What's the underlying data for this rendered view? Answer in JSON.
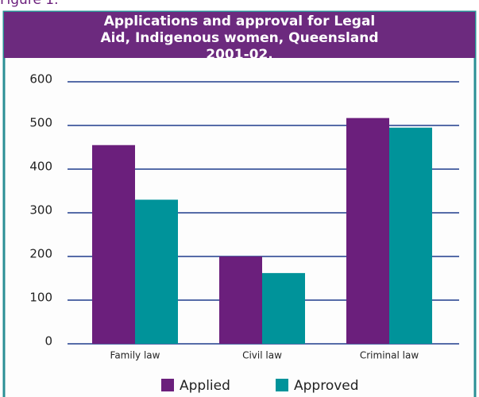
{
  "figure_label": "Figure 1.",
  "chart_data": {
    "type": "bar",
    "title": "Applications and approval for Legal Aid, Indigenous women, Queensland 2001-02.",
    "categories": [
      "Family law",
      "Civil law",
      "Criminal law"
    ],
    "series": [
      {
        "name": "Applied",
        "color": "#6b1f7c",
        "values": [
          455,
          200,
          517
        ]
      },
      {
        "name": "Approved",
        "color": "#00939a",
        "values": [
          330,
          162,
          495
        ]
      }
    ],
    "ylim": [
      0,
      600
    ],
    "yticks": [
      0,
      100,
      200,
      300,
      400,
      500,
      600
    ],
    "grid": true,
    "legend": "bottom"
  }
}
